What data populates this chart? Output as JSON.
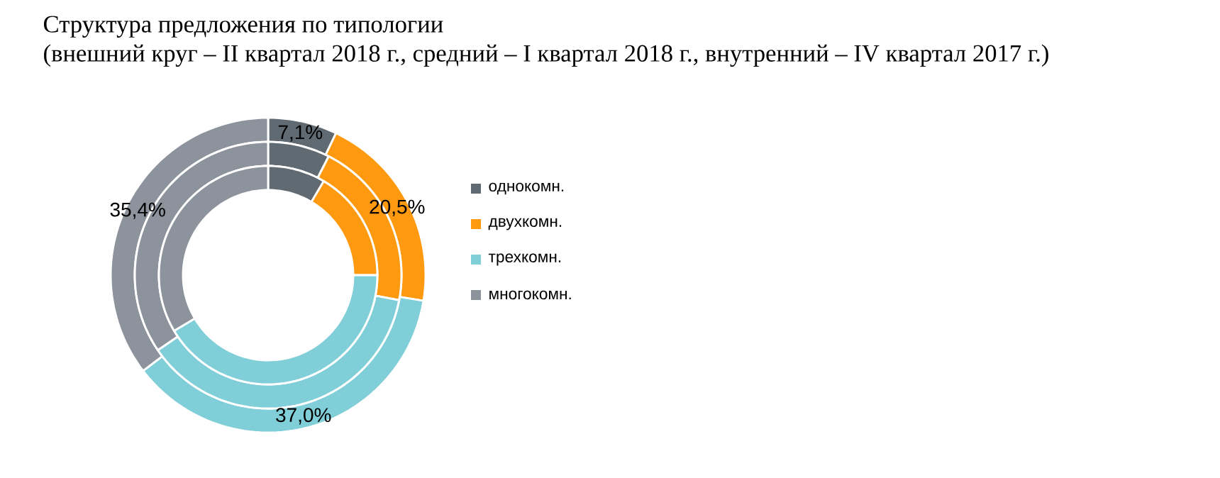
{
  "chart_data": {
    "type": "donut",
    "title": "Структура предложения по типологии",
    "subtitle": "(внешний круг – II квартал 2018 г., средний – I квартал 2018 г., внутренний – IV квартал 2017 г.)",
    "categories": [
      "однокомн.",
      "двухкомн.",
      "трехкомн.",
      "многокомн."
    ],
    "colors": [
      "#5f6a72",
      "#ff9910",
      "#80ced8",
      "#8d939c"
    ],
    "legend": "right",
    "series": [
      {
        "values": [
          7.1,
          20.5,
          37.0,
          35.4
        ],
        "value_labels": [
          "7,1%",
          "20,5%",
          "37,0%",
          "35,4%"
        ]
      },
      {
        "values": [
          7.5,
          20.5,
          37.5,
          34.5
        ]
      },
      {
        "values": [
          8.5,
          16.5,
          41.5,
          33.5
        ]
      }
    ]
  }
}
